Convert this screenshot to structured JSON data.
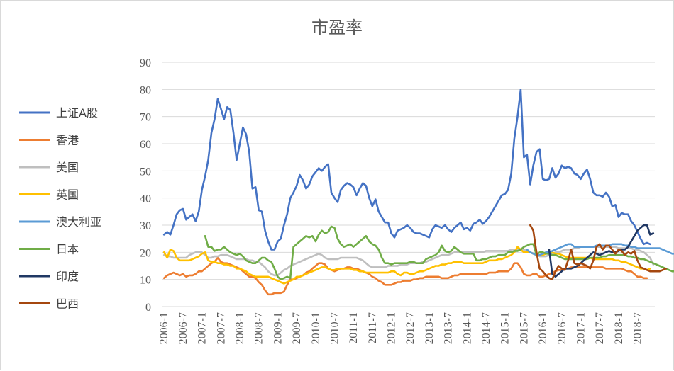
{
  "chart_data": {
    "type": "line",
    "title": "市盈率",
    "xlabel": "",
    "ylabel": "",
    "ylim": [
      0,
      90
    ],
    "yticks": [
      0,
      10,
      20,
      30,
      40,
      50,
      60,
      70,
      80,
      90
    ],
    "x_tick_labels": [
      "2006-1",
      "2006-7",
      "2007-1",
      "2007-7",
      "2008-1",
      "2008-7",
      "2009-1",
      "2009-7",
      "2010-1",
      "2010-7",
      "2011-1",
      "2011-7",
      "2012-1",
      "2012-7",
      "2013-1",
      "2013-7",
      "2014-1",
      "2014-7",
      "2015-1",
      "2015-7",
      "2016-1",
      "2016-7",
      "2017-1",
      "2017-7",
      "2018-1",
      "2018-7"
    ],
    "grid": "horizontal",
    "legend_position": "left",
    "x_unit": "month index from 2006-1",
    "series": [
      {
        "name": "上证A股",
        "color": "#4472C4",
        "start": 0,
        "values": [
          26.5,
          27.5,
          26.5,
          30,
          34,
          35.5,
          36,
          32,
          33,
          34,
          31.5,
          35,
          43,
          48,
          54,
          64,
          69,
          76.5,
          73,
          69,
          73.5,
          72.5,
          64,
          54,
          60,
          66,
          63.5,
          57,
          43.5,
          44,
          35.5,
          35,
          28,
          24,
          21,
          21,
          24,
          25,
          30,
          34,
          40,
          42,
          44.5,
          48.5,
          46.5,
          43.5,
          45,
          48,
          49.5,
          51,
          50,
          51.5,
          52.5,
          42,
          40,
          38.5,
          43,
          44.5,
          45.5,
          45,
          44,
          41,
          43.5,
          45.5,
          44.5,
          40,
          37,
          39.5,
          35,
          33,
          31,
          31,
          27,
          25.5,
          28,
          28.5,
          29,
          30,
          29,
          27.5,
          27,
          27,
          26.5,
          26,
          25.5,
          28.5,
          30,
          29.5,
          29,
          30,
          28.5,
          27.5,
          29,
          30,
          31,
          28.5,
          29,
          28,
          30.5,
          31,
          32,
          30.5,
          31.5,
          33,
          35,
          37,
          39,
          41,
          41.5,
          43,
          49,
          62,
          70,
          80,
          55,
          56,
          45,
          52,
          57,
          58,
          47,
          46.5,
          47,
          51,
          47.5,
          49,
          52,
          51,
          51.5,
          51,
          49,
          48.5,
          47,
          49,
          50.5,
          47,
          42,
          41,
          41,
          40.5,
          42,
          40.5,
          37,
          37.5,
          33,
          34.5,
          34,
          34,
          31.5,
          30,
          27.5,
          25,
          23,
          23.5,
          23
        ]
      },
      {
        "name": "香港",
        "color": "#ED7D31",
        "start": 0,
        "values": [
          10.5,
          11.5,
          12,
          12.5,
          12,
          11.5,
          12,
          11,
          11.5,
          11.5,
          12,
          13,
          13,
          14,
          15,
          16,
          16.5,
          18,
          16.5,
          16,
          16,
          15.5,
          15,
          14.5,
          14,
          13,
          12,
          11,
          11,
          10.5,
          9,
          8,
          6,
          4.5,
          4.5,
          5,
          5,
          5,
          5.5,
          8,
          10,
          10,
          10.5,
          11,
          11.5,
          12.5,
          13,
          14,
          15,
          16,
          16,
          15.5,
          14,
          13.5,
          13,
          13.5,
          14,
          14,
          14.5,
          14.5,
          14,
          14,
          13.5,
          13,
          12.5,
          12,
          11,
          10.5,
          9.5,
          9,
          8,
          8,
          8,
          8.5,
          9,
          9,
          9.5,
          9.5,
          9.5,
          10,
          10,
          10.5,
          10.5,
          11,
          11,
          11,
          11,
          11,
          10.5,
          10.5,
          10.5,
          11,
          11.5,
          11.5,
          12,
          12,
          12,
          12,
          12,
          12,
          12,
          12,
          12,
          12.5,
          12.5,
          12.5,
          13,
          13,
          13,
          13,
          14,
          16,
          16,
          14.5,
          12,
          11.5,
          11.5,
          12,
          12,
          11,
          11,
          11.5,
          12,
          12.5,
          13,
          13.5,
          13.5,
          14,
          14,
          14.5,
          14.5,
          14.5,
          14.5,
          14.5,
          14.5,
          14.5,
          14.5,
          14.5,
          14.5,
          14.5,
          14,
          14,
          14,
          14,
          14,
          14,
          13.5,
          13,
          13,
          12,
          11,
          11,
          10.5,
          10.5
        ]
      },
      {
        "name": "美国",
        "color": "#BFBFBF",
        "start": 0,
        "values": [
          19,
          18.5,
          18.5,
          18,
          18,
          18,
          18,
          18,
          19,
          19.5,
          20,
          20,
          20,
          19,
          18,
          18,
          18.5,
          18.5,
          19,
          19,
          19,
          18.5,
          18,
          17.5,
          17.5,
          17.5,
          17.5,
          17,
          17,
          16.5,
          16.5,
          15.5,
          14.5,
          13,
          12,
          11.5,
          11.5,
          12.5,
          13.5,
          14,
          15,
          15.5,
          16,
          16.5,
          17,
          17.5,
          18,
          18.5,
          19,
          19.5,
          19,
          18,
          17.5,
          17.5,
          17.5,
          17.5,
          18,
          18,
          18,
          18,
          18,
          18,
          17.5,
          17,
          16,
          15,
          14.5,
          14.5,
          14.5,
          14.5,
          14.5,
          15,
          15,
          15,
          15,
          15.5,
          15.5,
          15.5,
          16,
          16,
          16,
          16,
          16.5,
          16.5,
          17,
          17.5,
          18,
          18.5,
          19,
          19,
          19,
          19.5,
          20,
          20,
          20,
          20,
          20,
          20,
          20,
          20,
          20,
          20,
          20.5,
          20.5,
          20.5,
          20.5,
          20.5,
          20.5,
          20.5,
          20.5,
          21,
          21,
          21,
          21,
          21,
          20.5,
          20,
          19.5,
          19,
          18.5,
          18.5,
          18.5,
          19,
          19.5,
          20,
          20,
          20.5,
          21,
          21,
          21,
          21.5,
          21.5,
          22,
          22,
          22,
          22,
          22,
          22,
          22,
          22,
          22,
          22,
          22,
          22,
          21.5,
          21.5,
          21.5,
          21.5,
          21.5,
          21,
          21,
          20.5,
          20,
          19,
          18,
          15.5
        ]
      },
      {
        "name": "英国",
        "color": "#FFC000",
        "start": 0,
        "values": [
          20,
          18,
          21,
          20.5,
          18,
          17,
          17,
          17,
          17,
          17.5,
          18,
          18.5,
          19.5,
          20,
          17,
          16.5,
          16.5,
          16,
          16,
          15.5,
          15.5,
          15,
          15,
          14,
          14,
          13.5,
          13,
          12,
          11.5,
          11,
          11,
          11,
          11,
          11,
          10.5,
          10,
          9.5,
          9,
          8.5,
          9,
          9.5,
          10,
          11,
          11,
          11.5,
          12,
          12.5,
          13,
          13.5,
          14,
          14.5,
          14.5,
          14,
          13.5,
          13.5,
          14,
          14,
          14,
          14,
          14,
          13.5,
          13.5,
          13,
          13,
          12.5,
          12.5,
          12.5,
          12.5,
          12.5,
          12.5,
          12.5,
          12.5,
          13,
          13,
          12,
          11.5,
          12.5,
          12.5,
          12,
          12,
          12.5,
          13,
          13,
          13.5,
          14,
          14.5,
          15,
          15,
          15.5,
          15.5,
          16,
          16,
          16.5,
          16.5,
          16.5,
          16,
          16,
          16,
          16,
          16,
          16,
          16,
          16.5,
          17,
          17,
          17,
          17.5,
          17.5,
          18,
          18.5,
          19,
          20,
          22,
          21,
          20,
          20,
          20,
          19.5,
          19,
          19,
          19,
          19.5,
          20,
          20,
          19.5,
          19.5,
          19,
          18.5,
          18,
          18,
          18,
          18,
          18,
          18,
          18,
          18,
          17.5,
          17.5,
          17.5,
          17.5,
          17.5,
          17.5,
          17.5,
          17,
          17,
          16.5,
          16.5,
          16,
          15.5,
          15,
          14.5,
          14,
          14,
          13.5,
          14
        ]
      },
      {
        "name": "澳大利亚",
        "color": "#5B9BD5",
        "start": 115,
        "values": [
          21,
          20,
          19.5,
          19,
          19,
          19.5,
          20,
          20,
          20.5,
          21,
          21.5,
          22,
          22.5,
          23,
          23,
          22,
          22,
          22,
          22,
          22,
          22,
          22,
          22.5,
          22.5,
          22.5,
          22.5,
          22.5,
          23,
          23,
          23,
          23,
          22.5,
          22.5,
          22,
          22,
          21.5,
          21.5,
          21.5,
          21.5,
          21.5,
          21.5,
          21.5,
          21.5,
          21,
          20.5,
          20,
          19.5,
          19.5
        ]
      },
      {
        "name": "日本",
        "color": "#70AD47",
        "start": 13,
        "values": [
          26,
          22,
          22,
          20.5,
          21,
          21,
          22,
          21,
          20,
          19.5,
          19,
          19.5,
          18.5,
          17,
          16.5,
          16,
          16,
          17,
          18,
          18,
          17,
          16.5,
          14,
          11,
          10,
          10.5,
          11,
          10.5,
          22,
          23,
          24,
          25,
          26,
          25.5,
          26,
          24,
          26.5,
          28,
          27,
          27.5,
          29.5,
          29,
          25,
          23,
          22,
          22.5,
          23,
          22,
          23,
          24,
          25,
          26,
          24,
          23,
          22.5,
          21,
          18,
          16,
          16,
          15.5,
          16,
          16,
          16,
          16,
          16,
          16.5,
          16.5,
          16,
          16,
          16,
          17.5,
          18,
          18.5,
          19,
          20,
          22.5,
          20.5,
          20,
          20.5,
          22,
          21,
          20,
          19.5,
          19.5,
          19.5,
          19.5,
          17,
          17,
          17.5,
          17.5,
          18,
          18.5,
          18.5,
          19,
          19,
          19,
          20,
          20,
          20.5,
          20.5,
          21,
          22,
          22.5,
          23,
          23,
          19,
          20,
          20,
          19.5,
          19.5,
          19,
          19,
          18.5,
          18,
          17.5,
          17.5,
          17.5,
          17.5,
          17.5,
          17.5,
          17.5,
          17.5,
          18,
          18,
          18,
          18,
          18.5,
          18.5,
          19,
          19,
          19,
          19,
          19,
          19,
          18.5,
          18.5,
          18,
          18,
          17.5,
          17.5,
          17,
          16.5,
          16,
          15.5,
          15,
          14.5,
          14,
          13.5,
          13,
          13
        ]
      },
      {
        "name": "印度",
        "color": "#203864",
        "start": 122,
        "values": [
          21,
          12,
          11,
          12,
          13,
          14,
          14,
          14,
          14.5,
          15,
          16,
          17,
          18,
          19,
          20,
          19.5,
          19,
          19.5,
          20,
          20.5,
          20,
          20,
          20.5,
          21,
          21,
          22,
          24,
          26,
          28,
          29,
          30,
          30,
          26.5,
          27
        ]
      },
      {
        "name": "巴西",
        "color": "#A5470F",
        "start": 116,
        "values": [
          30,
          28,
          20,
          14,
          13,
          11.5,
          10.5,
          10,
          13,
          15,
          14,
          13.5,
          17,
          21,
          16,
          15.5,
          16,
          15.5,
          15,
          14,
          17,
          22,
          23,
          21,
          22.5,
          22.5,
          21,
          19.5,
          21,
          20.5,
          19,
          20,
          19.5,
          20.5,
          17,
          14.5,
          14,
          13.5,
          13,
          13,
          13,
          13,
          13.5,
          14
        ]
      }
    ]
  }
}
